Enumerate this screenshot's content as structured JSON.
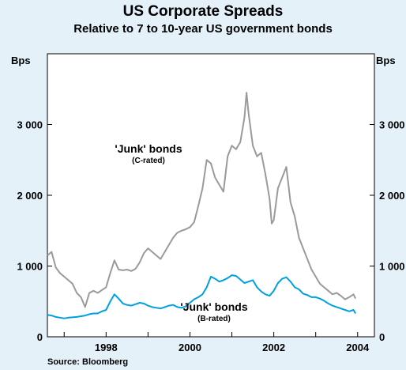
{
  "chart_data": {
    "type": "line",
    "title": "US Corporate Spreads",
    "subtitle": "Relative to 7 to 10-year US government bonds",
    "ylabel_left": "Bps",
    "ylabel_right": "Bps",
    "ylim": [
      0,
      4000
    ],
    "yticks": [
      0,
      1000,
      2000,
      3000
    ],
    "ytick_labels": [
      "0",
      "1 000",
      "2 000",
      "3 000"
    ],
    "xlim": [
      1996.6,
      2004.4
    ],
    "xticks": [
      1998,
      2000,
      2002,
      2004
    ],
    "xtick_labels": [
      "1998",
      "2000",
      "2002",
      "2004"
    ],
    "grid": false,
    "source": "Source: Bloomberg",
    "series": [
      {
        "name": "'Junk' bonds (C-rated)",
        "color": "#9a9a9a",
        "x": [
          1996.6,
          1996.7,
          1996.8,
          1996.9,
          1997.0,
          1997.1,
          1997.2,
          1997.3,
          1997.4,
          1997.5,
          1997.55,
          1997.6,
          1997.7,
          1997.8,
          1997.9,
          1998.0,
          1998.1,
          1998.2,
          1998.3,
          1998.4,
          1998.5,
          1998.6,
          1998.7,
          1998.8,
          1998.9,
          1999.0,
          1999.1,
          1999.2,
          1999.3,
          1999.4,
          1999.5,
          1999.6,
          1999.7,
          1999.8,
          1999.9,
          2000.0,
          2000.1,
          2000.2,
          2000.3,
          2000.4,
          2000.5,
          2000.6,
          2000.7,
          2000.8,
          2000.9,
          2001.0,
          2001.1,
          2001.2,
          2001.3,
          2001.35,
          2001.4,
          2001.5,
          2001.6,
          2001.7,
          2001.8,
          2001.9,
          2001.95,
          2002.0,
          2002.1,
          2002.2,
          2002.3,
          2002.4,
          2002.5,
          2002.6,
          2002.7,
          2002.8,
          2002.9,
          2003.0,
          2003.1,
          2003.2,
          2003.3,
          2003.4,
          2003.5,
          2003.6,
          2003.7,
          2003.8,
          2003.9,
          2003.95
        ],
        "values": [
          1150,
          1200,
          980,
          900,
          850,
          800,
          750,
          620,
          560,
          420,
          520,
          620,
          650,
          620,
          660,
          700,
          900,
          1080,
          950,
          940,
          950,
          930,
          960,
          1050,
          1180,
          1250,
          1200,
          1150,
          1100,
          1200,
          1300,
          1400,
          1470,
          1500,
          1520,
          1550,
          1620,
          1850,
          2100,
          2500,
          2450,
          2250,
          2150,
          2050,
          2550,
          2700,
          2650,
          2750,
          3100,
          3450,
          3150,
          2700,
          2550,
          2600,
          2300,
          1950,
          1600,
          1650,
          2100,
          2250,
          2400,
          1900,
          1700,
          1400,
          1250,
          1100,
          950,
          850,
          750,
          700,
          650,
          600,
          620,
          580,
          530,
          560,
          600,
          540
        ]
      },
      {
        "name": "'Junk' bonds (B-rated)",
        "color": "#00a0e0",
        "x": [
          1996.6,
          1996.7,
          1996.8,
          1996.9,
          1997.0,
          1997.1,
          1997.2,
          1997.3,
          1997.4,
          1997.5,
          1997.6,
          1997.7,
          1997.8,
          1997.9,
          1998.0,
          1998.1,
          1998.2,
          1998.3,
          1998.4,
          1998.5,
          1998.6,
          1998.7,
          1998.8,
          1998.9,
          1999.0,
          1999.1,
          1999.2,
          1999.3,
          1999.4,
          1999.5,
          1999.6,
          1999.7,
          1999.8,
          1999.9,
          2000.0,
          2000.1,
          2000.2,
          2000.3,
          2000.4,
          2000.5,
          2000.6,
          2000.7,
          2000.8,
          2000.9,
          2001.0,
          2001.1,
          2001.2,
          2001.3,
          2001.4,
          2001.5,
          2001.6,
          2001.7,
          2001.8,
          2001.9,
          2002.0,
          2002.1,
          2002.2,
          2002.3,
          2002.4,
          2002.5,
          2002.6,
          2002.7,
          2002.8,
          2002.9,
          2003.0,
          2003.1,
          2003.2,
          2003.3,
          2003.4,
          2003.5,
          2003.6,
          2003.7,
          2003.8,
          2003.9,
          2003.95
        ],
        "values": [
          310,
          300,
          280,
          270,
          260,
          270,
          275,
          280,
          290,
          300,
          320,
          330,
          330,
          360,
          380,
          500,
          600,
          540,
          470,
          450,
          440,
          460,
          480,
          470,
          440,
          420,
          410,
          400,
          420,
          440,
          450,
          420,
          410,
          430,
          480,
          530,
          560,
          600,
          700,
          850,
          820,
          780,
          800,
          830,
          870,
          860,
          810,
          760,
          780,
          800,
          700,
          640,
          600,
          580,
          650,
          760,
          820,
          840,
          780,
          700,
          670,
          610,
          590,
          560,
          560,
          540,
          510,
          470,
          440,
          420,
          400,
          380,
          360,
          380,
          330
        ]
      }
    ],
    "annotations": [
      {
        "main": "'Junk' bonds",
        "sub": "(C-rated)"
      },
      {
        "main": "'Junk' bonds",
        "sub": "(B-rated)"
      }
    ]
  }
}
